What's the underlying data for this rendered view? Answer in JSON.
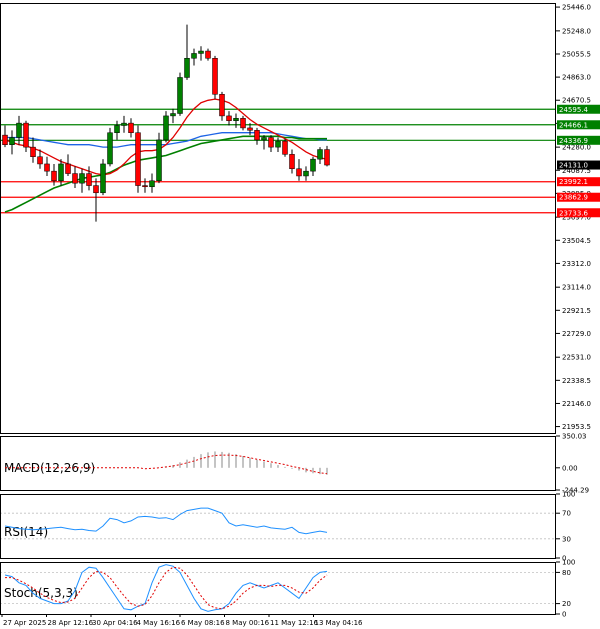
{
  "chart_data": {
    "type": "candlestick",
    "instrument_panel": {
      "y_ticks": [
        "25446.0",
        "25248.0",
        "25055.5",
        "24863.0",
        "24670.5",
        "24478.0",
        "24280.0",
        "24087.5",
        "23895.0",
        "23697.0",
        "23504.5",
        "23312.0",
        "23114.0",
        "22921.5",
        "22729.0",
        "22531.0",
        "22338.5",
        "22146.0",
        "21953.5"
      ],
      "ylim": [
        21900,
        25480
      ],
      "x_ticks": [
        "27 Apr 2025",
        "28 Apr 12:16",
        "30 Apr 04:16",
        "4 May 16:16",
        "6 May 08:16",
        "8 May 00:16",
        "11 May 12:16",
        "13 May 04:16"
      ],
      "candles": [
        {
          "o": 24380,
          "h": 24460,
          "l": 24280,
          "c": 24300
        },
        {
          "o": 24300,
          "h": 24420,
          "l": 24220,
          "c": 24360
        },
        {
          "o": 24360,
          "h": 24540,
          "l": 24300,
          "c": 24480
        },
        {
          "o": 24480,
          "h": 24500,
          "l": 24240,
          "c": 24280
        },
        {
          "o": 24280,
          "h": 24360,
          "l": 24150,
          "c": 24200
        },
        {
          "o": 24200,
          "h": 24260,
          "l": 24100,
          "c": 24140
        },
        {
          "o": 24140,
          "h": 24200,
          "l": 24040,
          "c": 24080
        },
        {
          "o": 24080,
          "h": 24140,
          "l": 23960,
          "c": 24000
        },
        {
          "o": 24000,
          "h": 24180,
          "l": 23960,
          "c": 24140
        },
        {
          "o": 24140,
          "h": 24220,
          "l": 24040,
          "c": 24060
        },
        {
          "o": 24060,
          "h": 24120,
          "l": 23940,
          "c": 23980
        },
        {
          "o": 23980,
          "h": 24100,
          "l": 23900,
          "c": 24060
        },
        {
          "o": 24060,
          "h": 24120,
          "l": 23920,
          "c": 23960
        },
        {
          "o": 23960,
          "h": 24020,
          "l": 23660,
          "c": 23900
        },
        {
          "o": 23900,
          "h": 24180,
          "l": 23880,
          "c": 24140
        },
        {
          "o": 24140,
          "h": 24440,
          "l": 24120,
          "c": 24400
        },
        {
          "o": 24400,
          "h": 24500,
          "l": 24340,
          "c": 24460
        },
        {
          "o": 24460,
          "h": 24540,
          "l": 24400,
          "c": 24480
        },
        {
          "o": 24480,
          "h": 24520,
          "l": 24360,
          "c": 24400
        },
        {
          "o": 24400,
          "h": 24460,
          "l": 23900,
          "c": 23960
        },
        {
          "o": 23960,
          "h": 24020,
          "l": 23900,
          "c": 23950
        },
        {
          "o": 23950,
          "h": 24060,
          "l": 23900,
          "c": 24000
        },
        {
          "o": 24000,
          "h": 24400,
          "l": 23980,
          "c": 24340
        },
        {
          "o": 24340,
          "h": 24580,
          "l": 24320,
          "c": 24540
        },
        {
          "o": 24540,
          "h": 24600,
          "l": 24480,
          "c": 24560
        },
        {
          "o": 24560,
          "h": 24900,
          "l": 24540,
          "c": 24860
        },
        {
          "o": 24860,
          "h": 25300,
          "l": 24840,
          "c": 25020
        },
        {
          "o": 25020,
          "h": 25100,
          "l": 24960,
          "c": 25060
        },
        {
          "o": 25060,
          "h": 25120,
          "l": 25000,
          "c": 25080
        },
        {
          "o": 25080,
          "h": 25100,
          "l": 25000,
          "c": 25020
        },
        {
          "o": 25020,
          "h": 25040,
          "l": 24680,
          "c": 24720
        },
        {
          "o": 24720,
          "h": 24740,
          "l": 24500,
          "c": 24540
        },
        {
          "o": 24540,
          "h": 24580,
          "l": 24460,
          "c": 24500
        },
        {
          "o": 24500,
          "h": 24560,
          "l": 24440,
          "c": 24520
        },
        {
          "o": 24520,
          "h": 24540,
          "l": 24420,
          "c": 24440
        },
        {
          "o": 24440,
          "h": 24480,
          "l": 24380,
          "c": 24420
        },
        {
          "o": 24420,
          "h": 24440,
          "l": 24300,
          "c": 24340
        },
        {
          "o": 24340,
          "h": 24380,
          "l": 24260,
          "c": 24360
        },
        {
          "o": 24360,
          "h": 24380,
          "l": 24240,
          "c": 24280
        },
        {
          "o": 24280,
          "h": 24360,
          "l": 24240,
          "c": 24330
        },
        {
          "o": 24330,
          "h": 24350,
          "l": 24200,
          "c": 24220
        },
        {
          "o": 24220,
          "h": 24260,
          "l": 24060,
          "c": 24100
        },
        {
          "o": 24100,
          "h": 24180,
          "l": 24000,
          "c": 24040
        },
        {
          "o": 24040,
          "h": 24120,
          "l": 24000,
          "c": 24080
        },
        {
          "o": 24080,
          "h": 24200,
          "l": 24040,
          "c": 24180
        },
        {
          "o": 24180,
          "h": 24280,
          "l": 24140,
          "c": 24260
        },
        {
          "o": 24260,
          "h": 24290,
          "l": 24120,
          "c": 24131
        }
      ],
      "ma_red": [
        24340,
        24320,
        24300,
        24290,
        24270,
        24250,
        24220,
        24190,
        24160,
        24140,
        24120,
        24100,
        24080,
        24060,
        24050,
        24060,
        24090,
        24140,
        24200,
        24240,
        24250,
        24250,
        24260,
        24300,
        24360,
        24440,
        24530,
        24600,
        24650,
        24670,
        24680,
        24670,
        24650,
        24610,
        24560,
        24510,
        24470,
        24440,
        24410,
        24380,
        24350,
        24320,
        24280,
        24240,
        24210,
        24190,
        24180
      ],
      "ma_blue": [
        24360,
        24360,
        24360,
        24360,
        24350,
        24340,
        24330,
        24320,
        24310,
        24300,
        24300,
        24300,
        24300,
        24290,
        24280,
        24280,
        24280,
        24290,
        24300,
        24300,
        24300,
        24300,
        24300,
        24300,
        24310,
        24320,
        24330,
        24350,
        24370,
        24380,
        24390,
        24400,
        24400,
        24400,
        24400,
        24400,
        24400,
        24400,
        24400,
        24390,
        24380,
        24370,
        24360,
        24350,
        24350,
        24340,
        24340
      ],
      "ma_green": [
        23740,
        23760,
        23790,
        23820,
        23850,
        23880,
        23910,
        23940,
        23960,
        23980,
        24000,
        24020,
        24030,
        24040,
        24050,
        24070,
        24100,
        24130,
        24150,
        24170,
        24180,
        24190,
        24200,
        24210,
        24230,
        24250,
        24270,
        24290,
        24310,
        24320,
        24330,
        24340,
        24350,
        24360,
        24370,
        24370,
        24370,
        24370,
        24370,
        24370,
        24360,
        24360,
        24350,
        24350,
        24350,
        24350,
        24350
      ],
      "horizontal_lines": [
        {
          "value": 24595.4,
          "label": "24595.4",
          "color": "#008000"
        },
        {
          "value": 24466.1,
          "label": "24466.1",
          "color": "#008000"
        },
        {
          "value": 24336.9,
          "label": "24336.9",
          "color": "#008000"
        },
        {
          "value": 23992.1,
          "label": "23992.1",
          "color": "#ff0000"
        },
        {
          "value": 23862.9,
          "label": "23862.9",
          "color": "#ff0000"
        },
        {
          "value": 23733.6,
          "label": "23733.6",
          "color": "#ff0000"
        }
      ],
      "current_price": {
        "value": 24131.0,
        "label": "24131.0"
      },
      "colors": {
        "ma_red": "#e00000",
        "ma_blue": "#1e64e6",
        "ma_green": "#008000",
        "candle_up": "#008000",
        "candle_down": "#ff0000"
      }
    },
    "macd_panel": {
      "label": "MACD(12,26,9)",
      "y_ticks": [
        "350.03",
        "0.00",
        "-244.29"
      ],
      "ylim": [
        -244.29,
        350.03
      ],
      "histogram": [
        0,
        0,
        0,
        0,
        0,
        0,
        0,
        0,
        0,
        0,
        0,
        0,
        0,
        0,
        0,
        0,
        0,
        0,
        0,
        0,
        0,
        0,
        0,
        10,
        30,
        60,
        90,
        120,
        150,
        170,
        180,
        175,
        165,
        150,
        130,
        110,
        90,
        70,
        50,
        30,
        10,
        -10,
        -30,
        -50,
        -60,
        -70,
        -75
      ],
      "signal": [
        0,
        0,
        0,
        0,
        0,
        0,
        0,
        0,
        0,
        0,
        0,
        0,
        0,
        0,
        0,
        0,
        0,
        0,
        0,
        0,
        -10,
        -5,
        0,
        10,
        20,
        35,
        55,
        75,
        100,
        120,
        135,
        140,
        140,
        135,
        125,
        110,
        95,
        80,
        65,
        50,
        35,
        15,
        0,
        -20,
        -40,
        -55,
        -65
      ]
    },
    "rsi_panel": {
      "label": "RSI(14)",
      "y_ticks": [
        "100",
        "70",
        "30",
        "0"
      ],
      "ylim": [
        0,
        100
      ],
      "levels": [
        70,
        30
      ],
      "values": [
        50,
        48,
        46,
        45,
        44,
        45,
        46,
        47,
        48,
        46,
        44,
        45,
        43,
        42,
        50,
        62,
        60,
        55,
        58,
        64,
        65,
        64,
        62,
        63,
        60,
        68,
        74,
        76,
        78,
        78,
        74,
        70,
        55,
        50,
        52,
        50,
        48,
        50,
        47,
        46,
        45,
        48,
        40,
        38,
        40,
        42,
        40
      ]
    },
    "stoch_panel": {
      "label": "Stoch(5,3,3)",
      "y_ticks": [
        "100",
        "80",
        "20",
        "0"
      ],
      "ylim": [
        0,
        100
      ],
      "k": [
        75,
        72,
        60,
        55,
        40,
        30,
        25,
        20,
        20,
        25,
        45,
        80,
        90,
        88,
        70,
        50,
        30,
        10,
        8,
        15,
        20,
        60,
        90,
        95,
        92,
        80,
        55,
        30,
        10,
        5,
        8,
        10,
        20,
        40,
        55,
        60,
        55,
        50,
        55,
        60,
        50,
        40,
        30,
        50,
        70,
        80,
        82
      ],
      "d": [
        70,
        70,
        65,
        58,
        50,
        40,
        32,
        26,
        22,
        23,
        30,
        50,
        70,
        82,
        80,
        70,
        52,
        35,
        20,
        15,
        18,
        35,
        60,
        80,
        90,
        88,
        75,
        55,
        35,
        18,
        12,
        10,
        15,
        25,
        40,
        50,
        55,
        55,
        53,
        55,
        55,
        50,
        42,
        40,
        50,
        65,
        75
      ]
    }
  }
}
